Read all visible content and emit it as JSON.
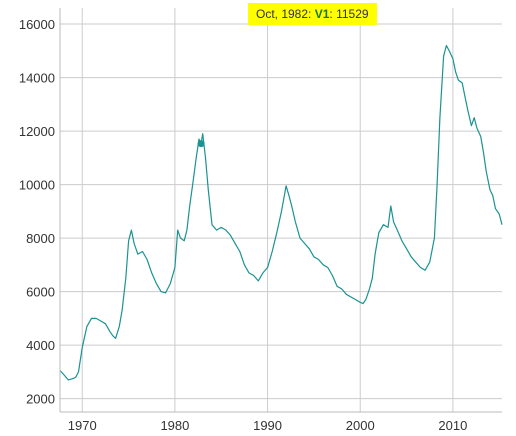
{
  "chart_data": {
    "type": "line",
    "grid": true,
    "legend": "none",
    "xlim": [
      1967.6,
      2015.3
    ],
    "ylim": [
      1500,
      16600
    ],
    "x_ticks": [
      1970,
      1980,
      1990,
      2000,
      2010
    ],
    "y_ticks": [
      2000,
      4000,
      6000,
      8000,
      10000,
      12000,
      14000,
      16000
    ],
    "x_tick_labels": [
      "1970",
      "1980",
      "1990",
      "2000",
      "2010"
    ],
    "y_tick_labels": [
      "2000",
      "4000",
      "6000",
      "8000",
      "10000",
      "12000",
      "14000",
      "16000"
    ],
    "series": [
      {
        "name": "V1",
        "color": "#1a9391",
        "x": [
          1967.6,
          1968.0,
          1968.5,
          1969.0,
          1969.3,
          1969.6,
          1970.0,
          1970.5,
          1971.0,
          1971.5,
          1972.0,
          1972.5,
          1973.0,
          1973.3,
          1973.6,
          1974.0,
          1974.3,
          1974.7,
          1975.0,
          1975.3,
          1975.6,
          1976.0,
          1976.5,
          1977.0,
          1977.5,
          1978.0,
          1978.5,
          1979.0,
          1979.5,
          1980.0,
          1980.3,
          1980.6,
          1981.0,
          1981.3,
          1981.6,
          1982.0,
          1982.3,
          1982.6,
          1982.83,
          1983.0,
          1983.3,
          1983.6,
          1984.0,
          1984.5,
          1985.0,
          1985.5,
          1986.0,
          1986.5,
          1987.0,
          1987.5,
          1988.0,
          1988.5,
          1989.0,
          1989.5,
          1990.0,
          1990.5,
          1991.0,
          1991.5,
          1992.0,
          1992.3,
          1992.6,
          1993.0,
          1993.5,
          1994.0,
          1994.5,
          1995.0,
          1995.5,
          1996.0,
          1996.5,
          1997.0,
          1997.5,
          1998.0,
          1998.5,
          1999.0,
          1999.5,
          2000.0,
          2000.3,
          2000.6,
          2001.0,
          2001.3,
          2001.6,
          2002.0,
          2002.5,
          2003.0,
          2003.3,
          2003.6,
          2004.0,
          2004.5,
          2005.0,
          2005.5,
          2006.0,
          2006.5,
          2007.0,
          2007.5,
          2008.0,
          2008.3,
          2008.6,
          2009.0,
          2009.3,
          2009.6,
          2010.0,
          2010.3,
          2010.6,
          2011.0,
          2011.3,
          2011.6,
          2012.0,
          2012.3,
          2012.6,
          2013.0,
          2013.3,
          2013.6,
          2014.0,
          2014.3,
          2014.6,
          2015.0,
          2015.3
        ],
        "values": [
          3050,
          2900,
          2700,
          2750,
          2800,
          3000,
          3900,
          4700,
          5000,
          5000,
          4900,
          4800,
          4500,
          4350,
          4250,
          4700,
          5300,
          6500,
          7900,
          8300,
          7800,
          7400,
          7500,
          7200,
          6700,
          6300,
          6000,
          5950,
          6300,
          6900,
          8300,
          8000,
          7900,
          8300,
          9200,
          10200,
          11000,
          11700,
          11529,
          11900,
          11000,
          9800,
          8500,
          8300,
          8400,
          8300,
          8100,
          7800,
          7500,
          7000,
          6700,
          6600,
          6400,
          6700,
          6900,
          7500,
          8200,
          9000,
          9950,
          9600,
          9200,
          8600,
          8000,
          7800,
          7600,
          7300,
          7200,
          7000,
          6900,
          6600,
          6200,
          6100,
          5900,
          5800,
          5700,
          5600,
          5550,
          5700,
          6100,
          6500,
          7400,
          8200,
          8500,
          8400,
          9200,
          8600,
          8300,
          7900,
          7600,
          7300,
          7100,
          6900,
          6800,
          7100,
          8000,
          10000,
          12500,
          14800,
          15200,
          15000,
          14700,
          14200,
          13900,
          13800,
          13300,
          12800,
          12200,
          12500,
          12100,
          11800,
          11200,
          10500,
          9800,
          9600,
          9100,
          8900,
          8500
        ]
      }
    ],
    "highlight": {
      "label": "Oct, 1982",
      "series": "V1",
      "x": 1982.83,
      "value": 11529
    }
  },
  "tooltip": {
    "date": "Oct, 1982:",
    "series": "V1",
    "sep": ":",
    "value": "11529"
  },
  "colors": {
    "line": "#1a9391",
    "grid": "#cccccc",
    "tooltip_bg": "#ffff00",
    "axis": "#333333"
  }
}
